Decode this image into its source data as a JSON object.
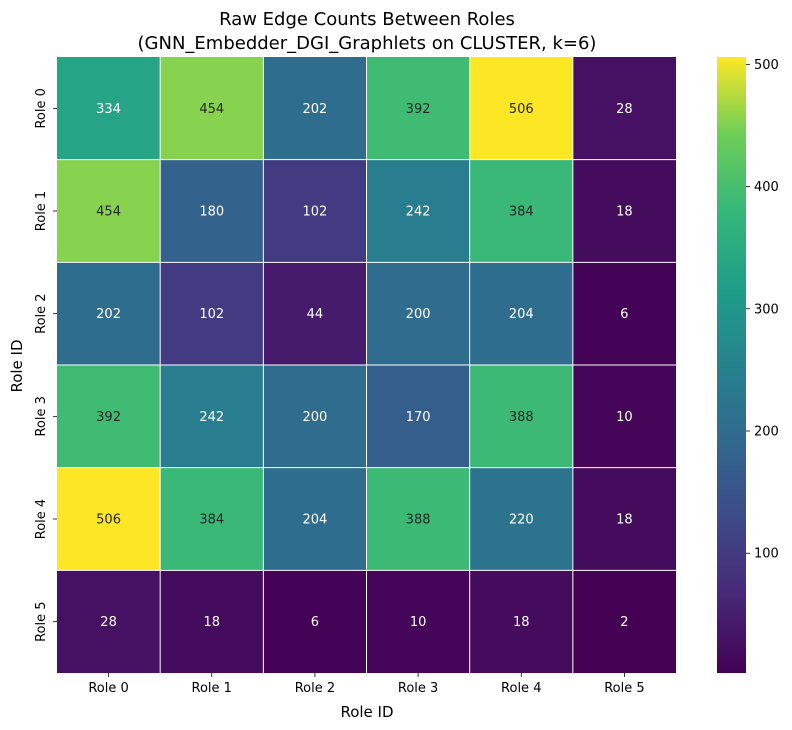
{
  "chart_data": {
    "type": "heatmap",
    "title_line1": "Raw Edge Counts Between Roles",
    "title_line2": "(GNN_Embedder_DGI_Graphlets on CLUSTER, k=6)",
    "xlabel": "Role ID",
    "ylabel": "Role ID",
    "x_categories": [
      "Role 0",
      "Role 1",
      "Role 2",
      "Role 3",
      "Role 4",
      "Role 5"
    ],
    "y_categories": [
      "Role 0",
      "Role 1",
      "Role 2",
      "Role 3",
      "Role 4",
      "Role 5"
    ],
    "values": [
      [
        334,
        454,
        202,
        392,
        506,
        28
      ],
      [
        454,
        180,
        102,
        242,
        384,
        18
      ],
      [
        202,
        102,
        44,
        200,
        204,
        6
      ],
      [
        392,
        242,
        200,
        170,
        388,
        10
      ],
      [
        506,
        384,
        204,
        388,
        220,
        18
      ],
      [
        28,
        18,
        6,
        10,
        18,
        2
      ]
    ],
    "colormap": "viridis",
    "vmin": 2,
    "vmax": 506,
    "colorbar_ticks": [
      100,
      200,
      300,
      400,
      500
    ],
    "annotations": true
  }
}
